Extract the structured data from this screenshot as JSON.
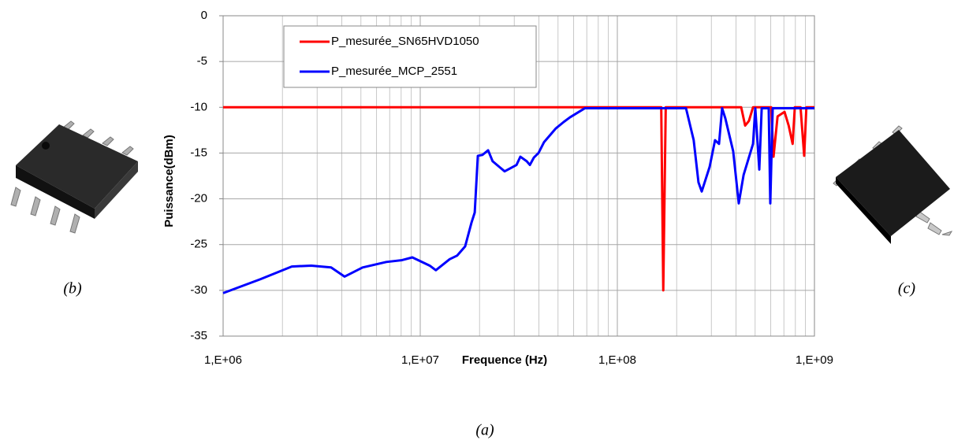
{
  "chart_data": {
    "type": "line",
    "x_label": "Frequence (Hz)",
    "y_label": "Puissance(dBm)",
    "annotations": [
      "(a)",
      "(b)",
      "(c)"
    ],
    "x_log": true,
    "grid": true,
    "x_minor_grid": true,
    "legend_position": "top-left",
    "xlim": [
      1000000,
      1000000000
    ],
    "ylim": [
      -35,
      0
    ],
    "xticks": [
      {
        "value": 1000000,
        "label": "1,E+06"
      },
      {
        "value": 10000000,
        "label": "1,E+07"
      },
      {
        "value": 100000000,
        "label": "1,E+08"
      },
      {
        "value": 1000000000,
        "label": "1,E+09"
      }
    ],
    "yticks": [
      0,
      -5,
      -10,
      -15,
      -20,
      -25,
      -30,
      -35
    ],
    "series": [
      {
        "name": "P_mesurée_SN65HVD1050",
        "color": "#ff0000",
        "x": [
          1000000,
          167000000,
          171000000,
          176000000,
          425000000,
          445000000,
          465000000,
          488000000,
          603000000,
          620000000,
          650000000,
          705000000,
          740000000,
          775000000,
          795000000,
          850000000,
          887000000,
          910000000,
          1000000000
        ],
        "values": [
          -10,
          -10,
          -30,
          -10,
          -10,
          -12,
          -11.5,
          -10,
          -10,
          -15.4,
          -11,
          -10.5,
          -12,
          -14,
          -10,
          -10,
          -15.3,
          -10,
          -10
        ]
      },
      {
        "name": "P_mesurée_MCP_2551",
        "color": "#0000ff",
        "x": [
          1000000,
          1540000,
          2230000,
          2800000,
          3530000,
          4130000,
          5100000,
          6730000,
          8090000,
          9120000,
          11170000,
          12000000,
          14100000,
          15400000,
          16900000,
          18200000,
          18900000,
          19600000,
          20700000,
          22100000,
          23300000,
          26800000,
          30800000,
          32200000,
          34700000,
          36000000,
          37700000,
          39800000,
          42500000,
          48800000,
          53500000,
          57500000,
          68500000,
          223000000,
          244000000,
          258000000,
          268000000,
          294000000,
          313000000,
          328000000,
          340000000,
          353000000,
          387000000,
          413000000,
          437000000,
          488000000,
          501000000,
          525000000,
          540000000,
          586000000,
          597000000,
          614000000,
          1000000000
        ],
        "values": [
          -30.3,
          -28.8,
          -27.4,
          -27.3,
          -27.5,
          -28.5,
          -27.5,
          -26.9,
          -26.7,
          -26.4,
          -27.3,
          -27.8,
          -26.6,
          -26.2,
          -25.2,
          -22.6,
          -21.5,
          -15.3,
          -15.2,
          -14.7,
          -15.9,
          -17,
          -16.3,
          -15.4,
          -15.9,
          -16.3,
          -15.5,
          -15,
          -13.8,
          -12.3,
          -11.6,
          -11.1,
          -10.1,
          -10.1,
          -13.6,
          -18.2,
          -19.2,
          -16.5,
          -13.6,
          -14,
          -10.1,
          -11.2,
          -14.8,
          -20.5,
          -17.4,
          -14,
          -10.1,
          -16.8,
          -10.1,
          -10.1,
          -20.5,
          -10.1,
          -10.1
        ]
      }
    ]
  }
}
